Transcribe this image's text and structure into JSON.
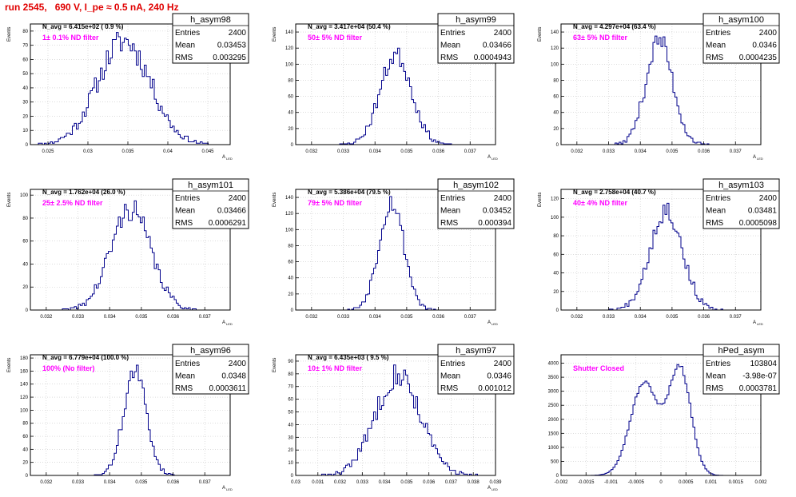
{
  "page_title": "run 2545,   690 V, I_pe ≈ 0.5 nA, 240 Hz",
  "colors": {
    "title": "#e00000",
    "annotation": "#ff00ff",
    "histogram": "#00008b",
    "grid": "#c8c8c8"
  },
  "chart_data": [
    {
      "type": "histogram",
      "name": "h_asym98",
      "n_avg_label": "N_avg = 6.415e+02 ( 0.9 %)",
      "filter_label": "1± 0.1% ND filter",
      "stats": {
        "entries": "2400",
        "mean": "0.03453",
        "rms": "0.003295"
      },
      "ylabel": "Events",
      "xlabel": "A_LED",
      "xlim": [
        0.0228,
        0.0478
      ],
      "ylim": [
        0,
        85
      ],
      "xticks": [
        "0.025",
        "0.03",
        "0.035",
        "0.04",
        "0.045"
      ],
      "yticks": [
        0,
        10,
        20,
        30,
        40,
        50,
        60,
        70,
        80
      ],
      "dist": {
        "kind": "gauss",
        "mean": 0.03453,
        "sigma": 0.003295,
        "peak": 73,
        "bins": 100,
        "seed": 11
      }
    },
    {
      "type": "histogram",
      "name": "h_asym99",
      "n_avg_label": "N_avg = 3.417e+04 (50.4 %)",
      "filter_label": "50± 5% ND filter",
      "stats": {
        "entries": "2400",
        "mean": "0.03466",
        "rms": "0.0004943"
      },
      "ylabel": "Events",
      "xlabel": "A_LED",
      "xlim": [
        0.0315,
        0.0378
      ],
      "ylim": [
        0,
        150
      ],
      "xticks": [
        "0.032",
        "0.033",
        "0.034",
        "0.035",
        "0.036",
        "0.037"
      ],
      "yticks": [
        0,
        20,
        40,
        60,
        80,
        100,
        120,
        140
      ],
      "dist": {
        "kind": "gauss",
        "mean": 0.03466,
        "sigma": 0.0004943,
        "peak": 112,
        "bins": 100,
        "seed": 23
      }
    },
    {
      "type": "histogram",
      "name": "h_asym100",
      "n_avg_label": "N_avg = 4.297e+04 (63.4 %)",
      "filter_label": "63± 5% ND filter",
      "stats": {
        "entries": "2400",
        "mean": "0.0346",
        "rms": "0.0004235"
      },
      "ylabel": "Events",
      "xlabel": "A_LED",
      "xlim": [
        0.0315,
        0.0378
      ],
      "ylim": [
        0,
        150
      ],
      "xticks": [
        "0.032",
        "0.033",
        "0.034",
        "0.035",
        "0.036",
        "0.037"
      ],
      "yticks": [
        0,
        20,
        40,
        60,
        80,
        100,
        120,
        140
      ],
      "dist": {
        "kind": "gauss",
        "mean": 0.0346,
        "sigma": 0.0004235,
        "peak": 130,
        "bins": 100,
        "seed": 37
      }
    },
    {
      "type": "histogram",
      "name": "h_asym101",
      "n_avg_label": "N_avg = 1.762e+04 (26.0 %)",
      "filter_label": "25± 2.5% ND filter",
      "stats": {
        "entries": "2400",
        "mean": "0.03466",
        "rms": "0.0006291"
      },
      "ylabel": "Events",
      "xlabel": "A_LED",
      "xlim": [
        0.0315,
        0.0378
      ],
      "ylim": [
        0,
        105
      ],
      "xticks": [
        "0.032",
        "0.033",
        "0.034",
        "0.035",
        "0.036",
        "0.037"
      ],
      "yticks": [
        0,
        20,
        40,
        60,
        80,
        100
      ],
      "dist": {
        "kind": "gauss",
        "mean": 0.03466,
        "sigma": 0.0006291,
        "peak": 88,
        "bins": 100,
        "seed": 41
      }
    },
    {
      "type": "histogram",
      "name": "h_asym102",
      "n_avg_label": "N_avg = 5.386e+04 (79.5 %)",
      "filter_label": "79± 5% ND filter",
      "stats": {
        "entries": "2400",
        "mean": "0.03452",
        "rms": "0.000394"
      },
      "ylabel": "Events",
      "xlabel": "A_LED",
      "xlim": [
        0.0315,
        0.0378
      ],
      "ylim": [
        0,
        150
      ],
      "xticks": [
        "0.032",
        "0.033",
        "0.034",
        "0.035",
        "0.036",
        "0.037"
      ],
      "yticks": [
        0,
        20,
        40,
        60,
        80,
        100,
        120,
        140
      ],
      "dist": {
        "kind": "gauss",
        "mean": 0.03452,
        "sigma": 0.000394,
        "peak": 135,
        "bins": 100,
        "seed": 53
      }
    },
    {
      "type": "histogram",
      "name": "h_asym103",
      "n_avg_label": "N_avg = 2.758e+04 (40.7 %)",
      "filter_label": "40± 4% ND filter",
      "stats": {
        "entries": "2400",
        "mean": "0.03481",
        "rms": "0.0005098"
      },
      "ylabel": "Events",
      "xlabel": "A_LED",
      "xlim": [
        0.0315,
        0.0378
      ],
      "ylim": [
        0,
        130
      ],
      "xticks": [
        "0.032",
        "0.033",
        "0.034",
        "0.035",
        "0.036",
        "0.037"
      ],
      "yticks": [
        0,
        20,
        40,
        60,
        80,
        100,
        120
      ],
      "dist": {
        "kind": "gauss",
        "mean": 0.03481,
        "sigma": 0.0005098,
        "peak": 108,
        "bins": 100,
        "seed": 67
      }
    },
    {
      "type": "histogram",
      "name": "h_asym96",
      "n_avg_label": "N_avg = 6.779e+04 (100.0 %)",
      "filter_label": "100% (No filter)",
      "stats": {
        "entries": "2400",
        "mean": "0.0348",
        "rms": "0.0003611"
      },
      "ylabel": "Events",
      "xlabel": "A_LED",
      "xlim": [
        0.0315,
        0.0378
      ],
      "ylim": [
        0,
        185
      ],
      "xticks": [
        "0.032",
        "0.033",
        "0.034",
        "0.035",
        "0.036",
        "0.037"
      ],
      "yticks": [
        0,
        20,
        40,
        60,
        80,
        100,
        120,
        140,
        160,
        180
      ],
      "dist": {
        "kind": "gauss",
        "mean": 0.0348,
        "sigma": 0.0003611,
        "peak": 160,
        "bins": 100,
        "seed": 71
      }
    },
    {
      "type": "histogram",
      "name": "h_asym97",
      "n_avg_label": "N_avg = 6.435e+03 ( 9.5 %)",
      "filter_label": "10± 1% ND filter",
      "stats": {
        "entries": "2400",
        "mean": "0.0346",
        "rms": "0.001012"
      },
      "ylabel": "Events",
      "xlabel": "A_LED",
      "xlim": [
        0.03,
        0.039
      ],
      "ylim": [
        0,
        95
      ],
      "xticks": [
        "0.03",
        "0.031",
        "0.032",
        "0.033",
        "0.034",
        "0.035",
        "0.036",
        "0.037",
        "0.038",
        "0.039"
      ],
      "yticks": [
        0,
        10,
        20,
        30,
        40,
        50,
        60,
        70,
        80,
        90
      ],
      "dist": {
        "kind": "gauss",
        "mean": 0.0346,
        "sigma": 0.001012,
        "peak": 80,
        "bins": 100,
        "seed": 83
      }
    },
    {
      "type": "histogram",
      "name": "hPed_asym",
      "n_avg_label": "",
      "filter_label": "Shutter Closed",
      "stats": {
        "entries": "103804",
        "mean": "-3.98e-07",
        "rms": "0.0003781"
      },
      "ylabel": "",
      "xlabel": "",
      "xlim": [
        -0.002,
        0.002
      ],
      "ylim": [
        0,
        4300
      ],
      "xticks": [
        "-0.002",
        "-0.0015",
        "-0.001",
        "-0.0005",
        "0",
        "0.0005",
        "0.001",
        "0.0015",
        "0.002"
      ],
      "yticks": [
        0,
        500,
        1000,
        1500,
        2000,
        2500,
        3000,
        3500,
        4000
      ],
      "dist": {
        "kind": "double",
        "bins": 100,
        "seed": 97,
        "components": [
          {
            "mean": -0.00033,
            "sigma": 0.00028,
            "peak": 3300
          },
          {
            "mean": 0.00038,
            "sigma": 0.00022,
            "peak": 3800
          }
        ]
      }
    }
  ]
}
